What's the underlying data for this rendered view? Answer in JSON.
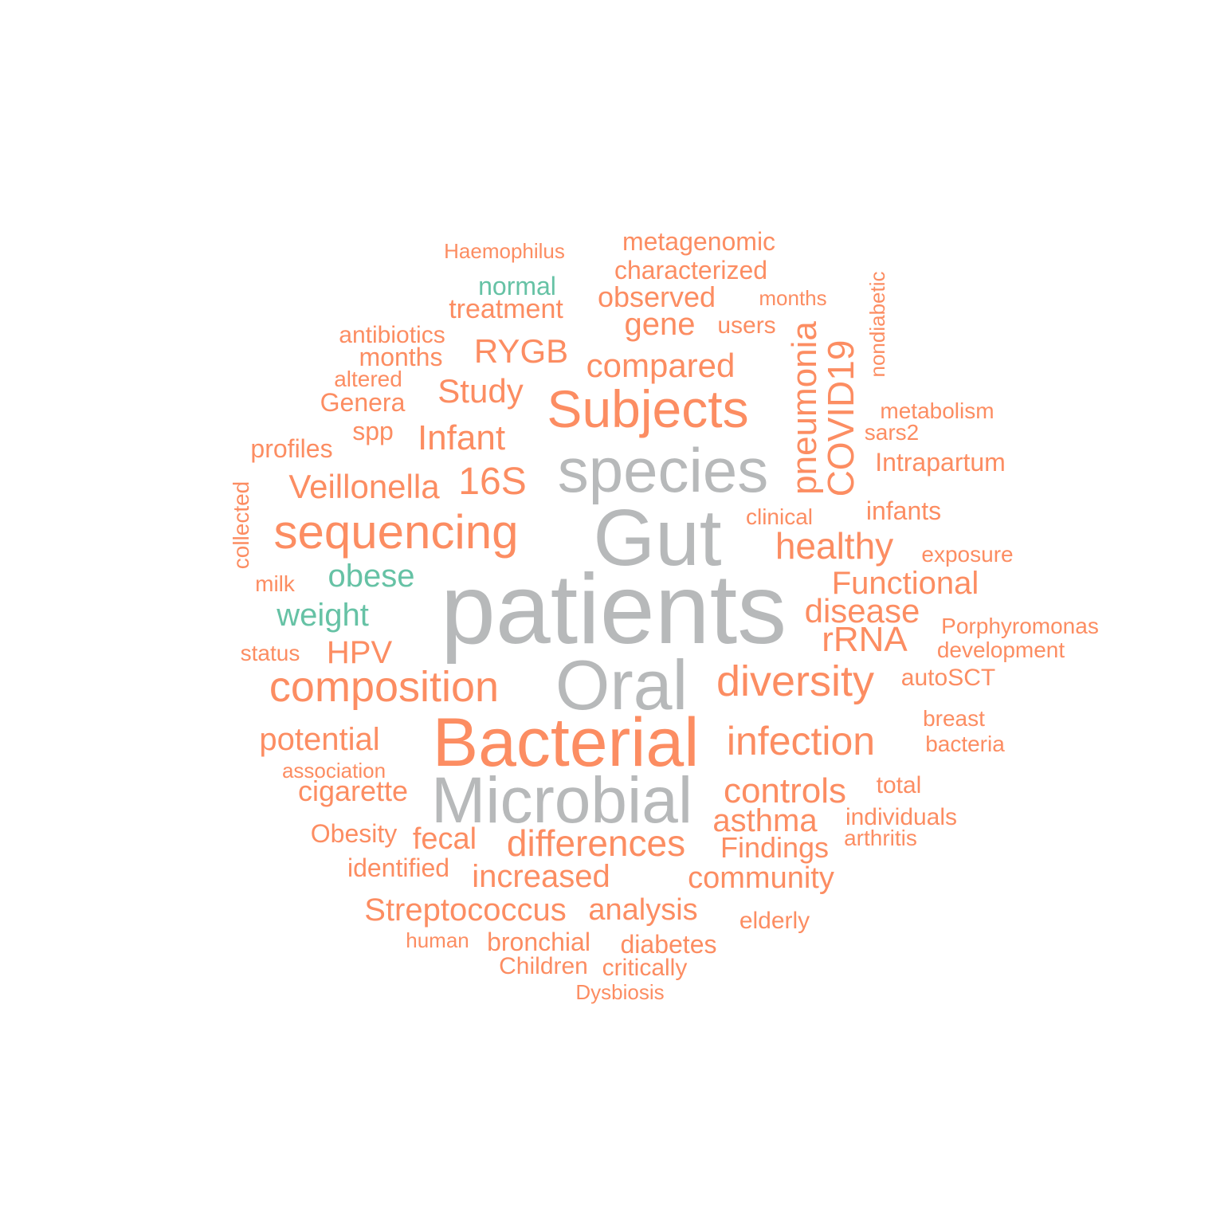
{
  "colors": {
    "orange": "#fc8d62",
    "gray": "#b7b9ba",
    "green": "#66c2a5"
  },
  "words": {
    "patients": "patients",
    "gut": "Gut",
    "oral": "Oral",
    "bacterial": "Bacterial",
    "microbial": "Microbial",
    "species": "species",
    "subjects": "Subjects",
    "sequencing": "sequencing",
    "composition": "composition",
    "diversity": "diversity",
    "infection": "infection",
    "differences": "differences",
    "controls": "controls",
    "healthy": "healthy",
    "pneumonia": "pneumonia",
    "covid19": "COVID19",
    "s16": "16S",
    "veillonella": "Veillonella",
    "infant": "Infant",
    "study": "Study",
    "rygb": "RYGB",
    "compared": "compared",
    "gene": "gene",
    "observed": "observed",
    "treatment": "treatment",
    "normal": "normal",
    "haemophilus": "Haemophilus",
    "metagenomic": "metagenomic",
    "characterized": "characterized",
    "months_top": "months",
    "users": "users",
    "nondiabetic": "nondiabetic",
    "antibiotics": "antibiotics",
    "months": "months",
    "altered": "altered",
    "genera": "Genera",
    "spp": "spp",
    "profiles": "profiles",
    "collected": "collected",
    "milk": "milk",
    "obese": "obese",
    "weight": "weight",
    "status": "status",
    "hpv": "HPV",
    "potential": "potential",
    "association": "association",
    "cigarette": "cigarette",
    "obesity": "Obesity",
    "fecal": "fecal",
    "identified": "identified",
    "increased": "increased",
    "streptococcus": "Streptococcus",
    "analysis": "analysis",
    "human": "human",
    "bronchial": "bronchial",
    "diabetes": "diabetes",
    "children": "Children",
    "critically": "critically",
    "dysbiosis": "Dysbiosis",
    "elderly": "elderly",
    "community": "community",
    "findings": "Findings",
    "asthma": "asthma",
    "individuals": "individuals",
    "arthritis": "arthritis",
    "total": "total",
    "breast": "breast",
    "bacteria": "bacteria",
    "autosct": "autoSCT",
    "development": "development",
    "porphyromonas": "Porphyromonas",
    "rrna": "rRNA",
    "disease": "disease",
    "functional": "Functional",
    "exposure": "exposure",
    "infants": "infants",
    "clinical": "clinical",
    "intrapartum": "Intrapartum",
    "sars2": "sars2",
    "metabolism": "metabolism"
  }
}
